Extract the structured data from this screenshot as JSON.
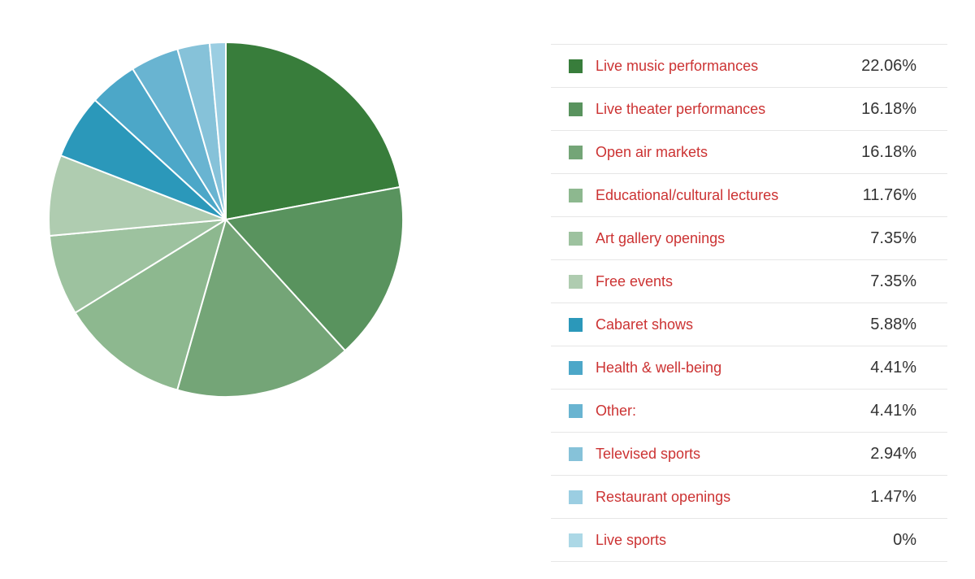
{
  "chart_data": {
    "type": "pie",
    "unit": "%",
    "slices": [
      {
        "label": "Live music performances",
        "value": 22.06,
        "value_label": "22.06%",
        "color": "#387d3b"
      },
      {
        "label": "Live theater performances",
        "value": 16.18,
        "value_label": "16.18%",
        "color": "#59935e"
      },
      {
        "label": "Open air markets",
        "value": 16.18,
        "value_label": "16.18%",
        "color": "#74a577"
      },
      {
        "label": "Educational/cultural lectures",
        "value": 11.76,
        "value_label": "11.76%",
        "color": "#8db88f"
      },
      {
        "label": "Art gallery openings",
        "value": 7.35,
        "value_label": "7.35%",
        "color": "#9dc29f"
      },
      {
        "label": "Free events",
        "value": 7.35,
        "value_label": "7.35%",
        "color": "#afccb0"
      },
      {
        "label": "Cabaret shows",
        "value": 5.88,
        "value_label": "5.88%",
        "color": "#2b98ba"
      },
      {
        "label": "Health & well-being",
        "value": 4.41,
        "value_label": "4.41%",
        "color": "#4ca7c8"
      },
      {
        "label": "Other:",
        "value": 4.41,
        "value_label": "4.41%",
        "color": "#69b4d1"
      },
      {
        "label": "Televised sports",
        "value": 2.94,
        "value_label": "2.94%",
        "color": "#86c2d9"
      },
      {
        "label": "Restaurant openings",
        "value": 1.47,
        "value_label": "1.47%",
        "color": "#9bcee2"
      },
      {
        "label": "Live sports",
        "value": 0,
        "value_label": "0%",
        "color": "#acd8e6"
      }
    ],
    "legend_position": "right"
  }
}
